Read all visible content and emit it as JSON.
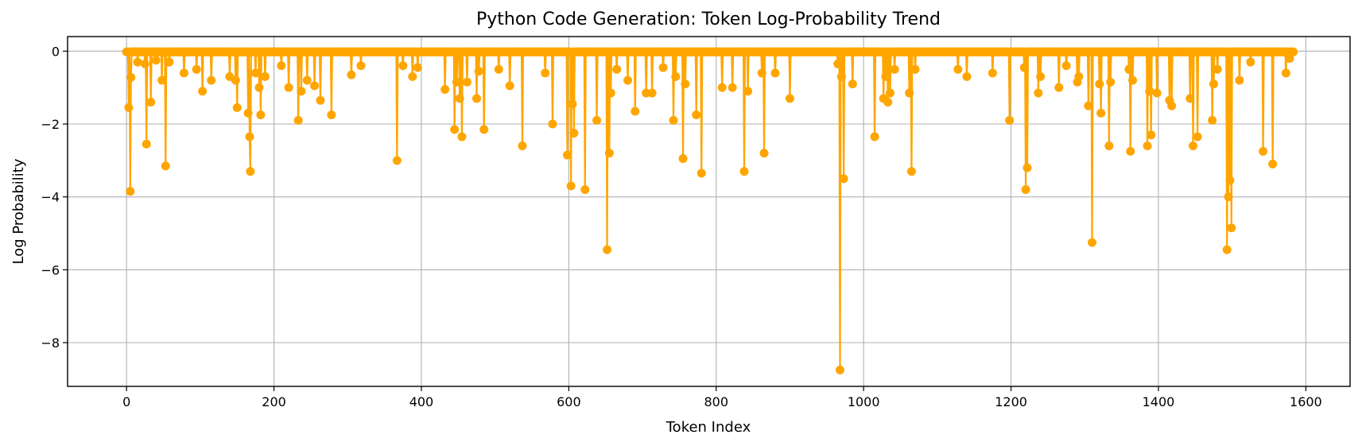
{
  "chart_data": {
    "type": "line",
    "title": "Python Code Generation: Token Log-Probability Trend",
    "xlabel": "Token Index",
    "ylabel": "Log Probability",
    "xlim": [
      -80,
      1660
    ],
    "ylim": [
      -9.2,
      0.4
    ],
    "xticks": [
      0,
      200,
      400,
      600,
      800,
      1000,
      1200,
      1400,
      1600
    ],
    "xtick_labels": [
      "0",
      "200",
      "400",
      "600",
      "800",
      "1000",
      "1200",
      "1400",
      "1600"
    ],
    "yticks": [
      0,
      -2,
      -4,
      -6,
      -8
    ],
    "ytick_labels": [
      "0",
      "−2",
      "−4",
      "−6",
      "−8"
    ],
    "grid": true,
    "legend": "none",
    "color": "#FFA500",
    "marker": "circle",
    "n_tokens": 1584,
    "baseline_value": -0.02,
    "dips": [
      [
        3,
        -1.55
      ],
      [
        5,
        -3.85
      ],
      [
        6,
        -0.72
      ],
      [
        15,
        -0.3
      ],
      [
        25,
        -0.35
      ],
      [
        27,
        -2.55
      ],
      [
        33,
        -1.4
      ],
      [
        40,
        -0.25
      ],
      [
        48,
        -0.8
      ],
      [
        53,
        -3.15
      ],
      [
        58,
        -0.3
      ],
      [
        78,
        -0.6
      ],
      [
        95,
        -0.5
      ],
      [
        103,
        -1.1
      ],
      [
        115,
        -0.8
      ],
      [
        140,
        -0.7
      ],
      [
        148,
        -0.8
      ],
      [
        150,
        -1.55
      ],
      [
        165,
        -1.7
      ],
      [
        167,
        -2.35
      ],
      [
        168,
        -3.3
      ],
      [
        175,
        -0.6
      ],
      [
        180,
        -1.0
      ],
      [
        182,
        -1.75
      ],
      [
        188,
        -0.7
      ],
      [
        210,
        -0.4
      ],
      [
        220,
        -1.0
      ],
      [
        233,
        -1.9
      ],
      [
        237,
        -1.1
      ],
      [
        245,
        -0.8
      ],
      [
        255,
        -0.95
      ],
      [
        263,
        -1.35
      ],
      [
        278,
        -1.75
      ],
      [
        305,
        -0.65
      ],
      [
        318,
        -0.4
      ],
      [
        367,
        -3.0
      ],
      [
        375,
        -0.4
      ],
      [
        388,
        -0.7
      ],
      [
        395,
        -0.45
      ],
      [
        432,
        -1.05
      ],
      [
        445,
        -2.15
      ],
      [
        448,
        -0.85
      ],
      [
        452,
        -1.3
      ],
      [
        455,
        -2.35
      ],
      [
        462,
        -0.85
      ],
      [
        475,
        -1.3
      ],
      [
        478,
        -0.55
      ],
      [
        485,
        -2.15
      ],
      [
        505,
        -0.5
      ],
      [
        520,
        -0.95
      ],
      [
        537,
        -2.6
      ],
      [
        568,
        -0.6
      ],
      [
        578,
        -2.0
      ],
      [
        598,
        -2.85
      ],
      [
        603,
        -3.7
      ],
      [
        605,
        -1.45
      ],
      [
        607,
        -2.25
      ],
      [
        622,
        -3.8
      ],
      [
        638,
        -1.9
      ],
      [
        652,
        -5.45
      ],
      [
        655,
        -2.8
      ],
      [
        657,
        -1.15
      ],
      [
        665,
        -0.5
      ],
      [
        680,
        -0.8
      ],
      [
        690,
        -1.65
      ],
      [
        705,
        -1.15
      ],
      [
        713,
        -1.15
      ],
      [
        728,
        -0.45
      ],
      [
        742,
        -1.9
      ],
      [
        745,
        -0.7
      ],
      [
        755,
        -2.95
      ],
      [
        758,
        -0.9
      ],
      [
        773,
        -1.75
      ],
      [
        780,
        -3.35
      ],
      [
        808,
        -1.0
      ],
      [
        822,
        -1.0
      ],
      [
        838,
        -3.3
      ],
      [
        843,
        -1.1
      ],
      [
        862,
        -0.6
      ],
      [
        865,
        -2.8
      ],
      [
        880,
        -0.6
      ],
      [
        900,
        -1.3
      ],
      [
        965,
        -0.35
      ],
      [
        968,
        -8.75
      ],
      [
        970,
        -0.7
      ],
      [
        973,
        -3.5
      ],
      [
        985,
        -0.9
      ],
      [
        1015,
        -2.35
      ],
      [
        1027,
        -1.3
      ],
      [
        1030,
        -0.7
      ],
      [
        1033,
        -1.4
      ],
      [
        1036,
        -1.15
      ],
      [
        1042,
        -0.5
      ],
      [
        1062,
        -1.15
      ],
      [
        1065,
        -3.3
      ],
      [
        1070,
        -0.5
      ],
      [
        1128,
        -0.5
      ],
      [
        1140,
        -0.7
      ],
      [
        1175,
        -0.6
      ],
      [
        1198,
        -1.9
      ],
      [
        1218,
        -0.45
      ],
      [
        1220,
        -3.8
      ],
      [
        1222,
        -3.2
      ],
      [
        1237,
        -1.15
      ],
      [
        1240,
        -0.7
      ],
      [
        1265,
        -1.0
      ],
      [
        1275,
        -0.4
      ],
      [
        1290,
        -0.85
      ],
      [
        1292,
        -0.7
      ],
      [
        1305,
        -1.5
      ],
      [
        1310,
        -5.25
      ],
      [
        1320,
        -0.9
      ],
      [
        1322,
        -1.7
      ],
      [
        1333,
        -2.6
      ],
      [
        1335,
        -0.85
      ],
      [
        1360,
        -0.5
      ],
      [
        1362,
        -2.75
      ],
      [
        1365,
        -0.8
      ],
      [
        1385,
        -2.6
      ],
      [
        1388,
        -1.1
      ],
      [
        1390,
        -2.3
      ],
      [
        1398,
        -1.15
      ],
      [
        1415,
        -1.35
      ],
      [
        1418,
        -1.5
      ],
      [
        1443,
        -1.3
      ],
      [
        1447,
        -2.6
      ],
      [
        1453,
        -2.35
      ],
      [
        1473,
        -1.9
      ],
      [
        1475,
        -0.9
      ],
      [
        1480,
        -0.5
      ],
      [
        1493,
        -5.45
      ],
      [
        1495,
        -4.0
      ],
      [
        1497,
        -3.55
      ],
      [
        1499,
        -4.85
      ],
      [
        1510,
        -0.8
      ],
      [
        1525,
        -0.3
      ],
      [
        1542,
        -2.75
      ],
      [
        1555,
        -3.1
      ],
      [
        1573,
        -0.6
      ],
      [
        1578,
        -0.2
      ]
    ]
  }
}
